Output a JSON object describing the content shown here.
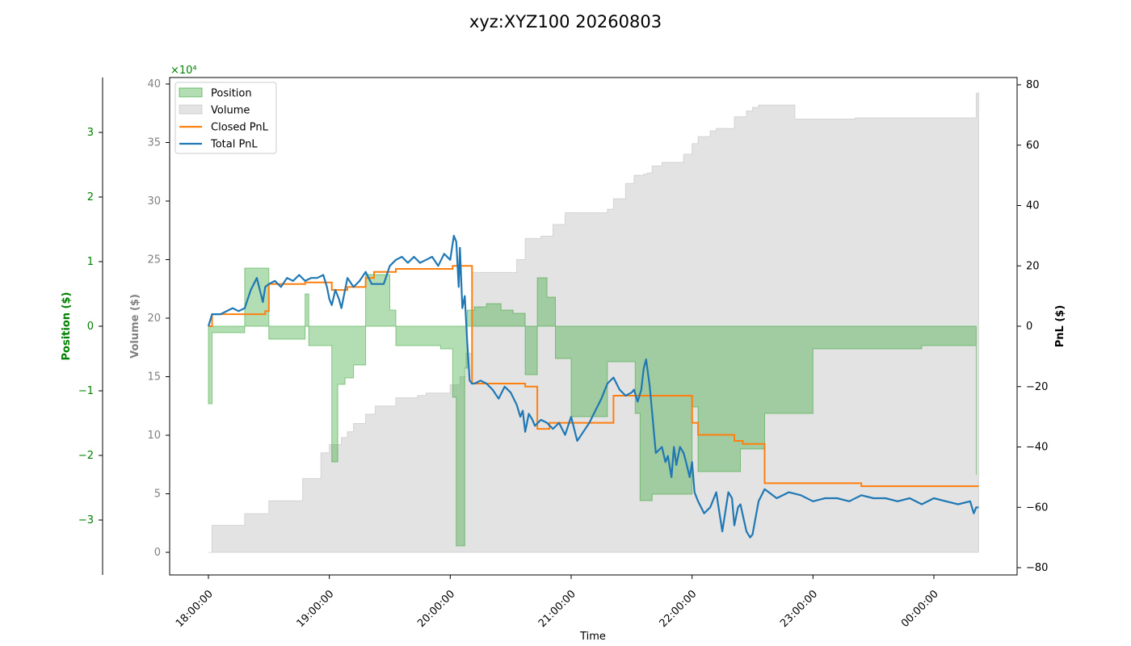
{
  "chart_data": {
    "type": "line",
    "title": "xyz:XYZ100 20260803",
    "xlabel": "Time",
    "x_ticks": [
      "18:00:00",
      "19:00:00",
      "20:00:00",
      "21:00:00",
      "22:00:00",
      "23:00:00",
      "00:00:00"
    ],
    "x_range_hours": [
      -0.32,
      6.68
    ],
    "axes": {
      "position": {
        "label": "Position ($)",
        "color": "#008000",
        "multiplier": "×10⁴",
        "ylim": [
          -3.9,
          4.0
        ],
        "ticks": [
          -3,
          -2,
          -1,
          0,
          1,
          2,
          3
        ]
      },
      "volume": {
        "label": "Volume ($)",
        "color": "#808080",
        "ylim": [
          -2,
          40.5
        ],
        "ticks": [
          0,
          5,
          10,
          15,
          20,
          25,
          30,
          35,
          40
        ]
      },
      "pnl": {
        "label": "PnL ($)",
        "color": "#000000",
        "ylim": [
          -80,
          82
        ],
        "ticks": [
          -80,
          -60,
          -40,
          -20,
          0,
          20,
          40,
          60,
          80
        ]
      }
    },
    "legend": {
      "placement": "top-left",
      "entries": [
        {
          "label": "Position",
          "kind": "patch",
          "color": "#2ca02c"
        },
        {
          "label": "Volume",
          "kind": "patch",
          "color": "#c0c0c0"
        },
        {
          "label": "Closed PnL",
          "kind": "line",
          "color": "#ff7f0e"
        },
        {
          "label": "Total PnL",
          "kind": "line",
          "color": "#1f77b4"
        }
      ]
    },
    "series": [
      {
        "name": "Volume",
        "axis": "volume",
        "color": "#c0c0c0",
        "step": true,
        "x": [
          0,
          0.03,
          0.3,
          0.5,
          0.78,
          0.93,
          1.0,
          1.1,
          1.15,
          1.2,
          1.3,
          1.38,
          1.55,
          1.73,
          1.8,
          2.0,
          2.08,
          2.13,
          2.18,
          2.55,
          2.62,
          2.75,
          2.85,
          2.95,
          3.3,
          3.35,
          3.45,
          3.52,
          3.6,
          3.63,
          3.67,
          3.75,
          3.93,
          4.0,
          4.05,
          4.15,
          4.2,
          4.35,
          4.45,
          4.5,
          4.55,
          4.85,
          5.35,
          6.3,
          6.35,
          6.37
        ],
        "y": [
          0,
          2.3,
          3.3,
          4.4,
          6.3,
          8.5,
          9.2,
          9.8,
          10.3,
          11.0,
          11.8,
          12.5,
          13.2,
          13.4,
          13.6,
          14.3,
          15.0,
          17.0,
          23.9,
          25.0,
          26.8,
          27.0,
          28.0,
          29.0,
          29.3,
          30.2,
          31.5,
          32.2,
          32.3,
          32.4,
          33.0,
          33.3,
          34.0,
          34.9,
          35.5,
          36.0,
          36.2,
          37.2,
          37.7,
          38.0,
          38.2,
          37.0,
          37.1,
          37.1,
          39.2,
          39.3
        ]
      },
      {
        "name": "Position",
        "axis": "position",
        "color": "#2ca02c",
        "step": true,
        "x": [
          0,
          0.03,
          0.3,
          0.47,
          0.5,
          0.67,
          0.77,
          0.8,
          0.83,
          0.98,
          1.02,
          1.07,
          1.1,
          1.13,
          1.15,
          1.2,
          1.3,
          1.45,
          1.5,
          1.55,
          1.62,
          1.88,
          1.92,
          2.02,
          2.05,
          2.06,
          2.12,
          2.14,
          2.2,
          2.3,
          2.42,
          2.47,
          2.52,
          2.55,
          2.57,
          2.62,
          2.72,
          2.8,
          2.87,
          3.0,
          3.2,
          3.25,
          3.3,
          3.35,
          3.53,
          3.57,
          3.6,
          3.67,
          3.9,
          3.95,
          4.0,
          4.02,
          4.05,
          4.2,
          4.4,
          4.45,
          4.5,
          4.52,
          4.6,
          5.0,
          5.3,
          5.4,
          5.9,
          6.2,
          6.35
        ],
        "y": [
          -1.2,
          -0.1,
          0.9,
          0.9,
          -0.2,
          -0.2,
          -0.2,
          0.5,
          -0.3,
          -0.3,
          -2.1,
          -0.9,
          -0.9,
          -0.8,
          -0.8,
          -0.6,
          0.8,
          0.8,
          0.25,
          -0.3,
          -0.3,
          -0.3,
          -0.35,
          -1.1,
          -3.4,
          -3.4,
          -0.65,
          0.25,
          0.3,
          0.35,
          0.25,
          0.25,
          0.2,
          0.2,
          0.2,
          -0.75,
          0.75,
          0.45,
          -0.5,
          -1.4,
          -1.4,
          -1.4,
          -0.55,
          -0.55,
          -1.35,
          -2.7,
          -2.7,
          -2.6,
          -2.6,
          -2.6,
          -1.25,
          -1.25,
          -2.25,
          -2.25,
          -1.9,
          -1.9,
          -1.9,
          -1.9,
          -1.35,
          -0.35,
          -0.35,
          -0.35,
          -0.3,
          -0.3,
          -2.3
        ]
      },
      {
        "name": "Closed PnL",
        "axis": "pnl",
        "color": "#ff7f0e",
        "step": true,
        "x": [
          0,
          0.03,
          0.47,
          0.5,
          0.8,
          1.02,
          1.07,
          1.1,
          1.15,
          1.2,
          1.3,
          1.37,
          1.55,
          1.8,
          1.95,
          2.02,
          2.05,
          2.08,
          2.12,
          2.18,
          2.62,
          2.72,
          2.82,
          2.95,
          3.05,
          3.13,
          3.2,
          3.3,
          3.35,
          3.6,
          3.63,
          3.67,
          3.75,
          3.88,
          4.0,
          4.05,
          4.2,
          4.35,
          4.42,
          4.5,
          4.6,
          4.8,
          4.95,
          5.2,
          5.4,
          5.6,
          5.8,
          6.37
        ],
        "y": [
          0,
          4,
          5,
          14,
          14.5,
          12,
          12,
          12,
          13,
          13,
          16,
          18,
          19,
          19,
          19,
          20,
          20,
          20,
          20,
          -19,
          -20,
          -34,
          -32,
          -32,
          -32,
          -32,
          -32,
          -32,
          -23,
          -23,
          -23,
          -23,
          -23,
          -23,
          -32,
          -36,
          -36,
          -38,
          -39,
          -39,
          -52,
          -52,
          -52,
          -52,
          -53,
          -53,
          -53,
          -53
        ]
      },
      {
        "name": "Total PnL",
        "axis": "pnl",
        "color": "#1f77b4",
        "x": [
          0,
          0.03,
          0.1,
          0.2,
          0.25,
          0.3,
          0.35,
          0.4,
          0.45,
          0.47,
          0.5,
          0.55,
          0.6,
          0.65,
          0.7,
          0.75,
          0.8,
          0.85,
          0.9,
          0.95,
          0.98,
          1.0,
          1.02,
          1.05,
          1.08,
          1.1,
          1.12,
          1.15,
          1.2,
          1.25,
          1.3,
          1.35,
          1.4,
          1.45,
          1.5,
          1.55,
          1.6,
          1.65,
          1.7,
          1.75,
          1.8,
          1.85,
          1.9,
          1.95,
          2.0,
          2.03,
          2.05,
          2.07,
          2.08,
          2.1,
          2.12,
          2.14,
          2.16,
          2.18,
          2.2,
          2.25,
          2.3,
          2.35,
          2.4,
          2.45,
          2.5,
          2.55,
          2.58,
          2.6,
          2.62,
          2.65,
          2.68,
          2.7,
          2.75,
          2.8,
          2.85,
          2.9,
          2.95,
          3.0,
          3.05,
          3.1,
          3.15,
          3.2,
          3.25,
          3.3,
          3.35,
          3.4,
          3.45,
          3.5,
          3.52,
          3.55,
          3.58,
          3.6,
          3.62,
          3.65,
          3.7,
          3.75,
          3.78,
          3.8,
          3.83,
          3.85,
          3.87,
          3.9,
          3.93,
          3.95,
          3.98,
          4.0,
          4.02,
          4.05,
          4.1,
          4.15,
          4.2,
          4.25,
          4.3,
          4.33,
          4.35,
          4.38,
          4.4,
          4.45,
          4.48,
          4.5,
          4.55,
          4.6,
          4.7,
          4.8,
          4.9,
          5.0,
          5.1,
          5.2,
          5.3,
          5.4,
          5.5,
          5.6,
          5.7,
          5.8,
          5.9,
          6.0,
          6.1,
          6.2,
          6.3,
          6.33,
          6.35,
          6.37
        ],
        "y": [
          0,
          4,
          4,
          6,
          5,
          6,
          12,
          16,
          8,
          13,
          14,
          15,
          13,
          16,
          15,
          17,
          15,
          16,
          16,
          17,
          13,
          9,
          7,
          12,
          9,
          6,
          10,
          16,
          13,
          15,
          18,
          14,
          14,
          14,
          20,
          22,
          23,
          21,
          23,
          21,
          22,
          23,
          20,
          24,
          22,
          30,
          28,
          13,
          26,
          6,
          10,
          -5,
          -18,
          -19,
          -19,
          -18,
          -19,
          -21,
          -24,
          -20,
          -22,
          -26,
          -30,
          -28,
          -35,
          -29,
          -31,
          -33,
          -31,
          -32,
          -34,
          -32,
          -36,
          -30,
          -38,
          -35,
          -32,
          -28,
          -24,
          -19,
          -17,
          -21,
          -23,
          -22,
          -21,
          -25,
          -21,
          -14,
          -11,
          -20,
          -42,
          -40,
          -45,
          -43,
          -50,
          -40,
          -46,
          -40,
          -42,
          -45,
          -50,
          -45,
          -55,
          -58,
          -62,
          -60,
          -55,
          -68,
          -55,
          -57,
          -66,
          -60,
          -59,
          -68,
          -70,
          -69,
          -58,
          -54,
          -57,
          -55,
          -56,
          -58,
          -57,
          -57,
          -58,
          -56,
          -57,
          -57,
          -58,
          -57,
          -59,
          -57,
          -58,
          -59,
          -58,
          -62,
          -60,
          -60
        ]
      }
    ]
  }
}
